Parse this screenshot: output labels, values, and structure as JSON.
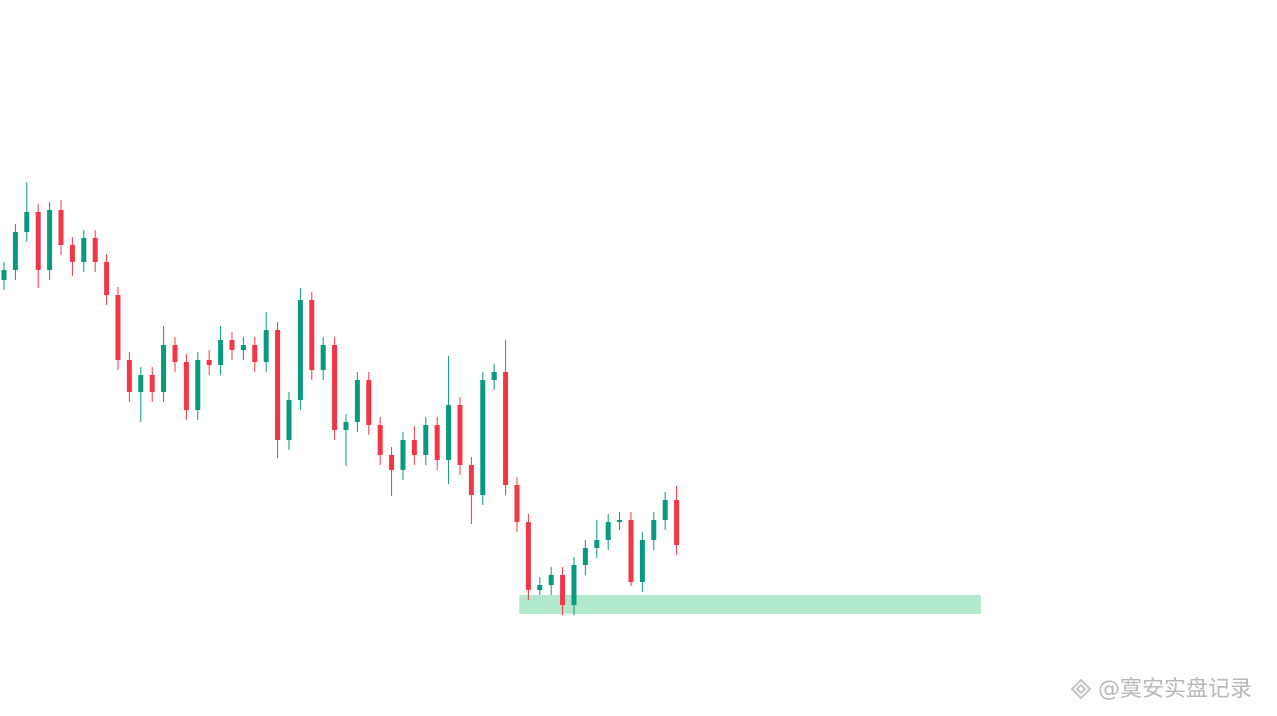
{
  "chart_data": {
    "type": "candlestick",
    "xlim": [
      -0.35,
      111.67
    ],
    "ylim": [
      0,
      716
    ],
    "up_color": "#089981",
    "down_color": "#f23645",
    "series": {
      "open": [
        436,
        446,
        484,
        504,
        446,
        506,
        471,
        454,
        478,
        454,
        421,
        356,
        324,
        341,
        324,
        371,
        354,
        306,
        356,
        351,
        376,
        366,
        371,
        354,
        386,
        276,
        316,
        416,
        346,
        371,
        286,
        294,
        336,
        291,
        261,
        246,
        276,
        261,
        291,
        256,
        311,
        251,
        221,
        336,
        344,
        231,
        194,
        126,
        131,
        141,
        111,
        151,
        168,
        176,
        194,
        196,
        134,
        176,
        196,
        216
      ],
      "high": [
        454,
        492,
        534,
        512,
        514,
        516,
        479,
        486,
        486,
        462,
        429,
        364,
        349,
        349,
        390,
        379,
        362,
        364,
        366,
        390,
        384,
        379,
        379,
        404,
        394,
        324,
        428,
        424,
        379,
        379,
        302,
        344,
        344,
        299,
        269,
        284,
        290,
        299,
        299,
        360,
        319,
        259,
        344,
        352,
        376,
        239,
        202,
        139,
        149,
        149,
        159,
        176,
        196,
        202,
        204,
        204,
        184,
        204,
        224,
        230
      ],
      "low": [
        426,
        436,
        474,
        428,
        436,
        461,
        440,
        444,
        444,
        411,
        346,
        314,
        294,
        314,
        314,
        344,
        296,
        296,
        341,
        341,
        356,
        356,
        344,
        344,
        258,
        266,
        306,
        336,
        336,
        276,
        250,
        284,
        281,
        251,
        220,
        236,
        251,
        251,
        246,
        232,
        241,
        192,
        211,
        326,
        221,
        184,
        116,
        121,
        121,
        101,
        101,
        141,
        158,
        166,
        186,
        130,
        124,
        166,
        186,
        161
      ],
      "close": [
        446,
        484,
        504,
        446,
        506,
        471,
        454,
        478,
        454,
        421,
        356,
        324,
        341,
        324,
        371,
        354,
        306,
        356,
        351,
        376,
        366,
        371,
        354,
        386,
        276,
        316,
        416,
        346,
        371,
        286,
        294,
        336,
        291,
        261,
        246,
        276,
        261,
        291,
        256,
        311,
        251,
        221,
        336,
        344,
        231,
        194,
        126,
        131,
        141,
        111,
        151,
        168,
        176,
        194,
        196,
        134,
        176,
        196,
        216,
        171
      ]
    },
    "zone": {
      "x": [
        45.2,
        85.7
      ],
      "y": [
        102,
        121
      ],
      "color": "#b2e8cc"
    }
  },
  "watermark": "@寞安实盘记录"
}
